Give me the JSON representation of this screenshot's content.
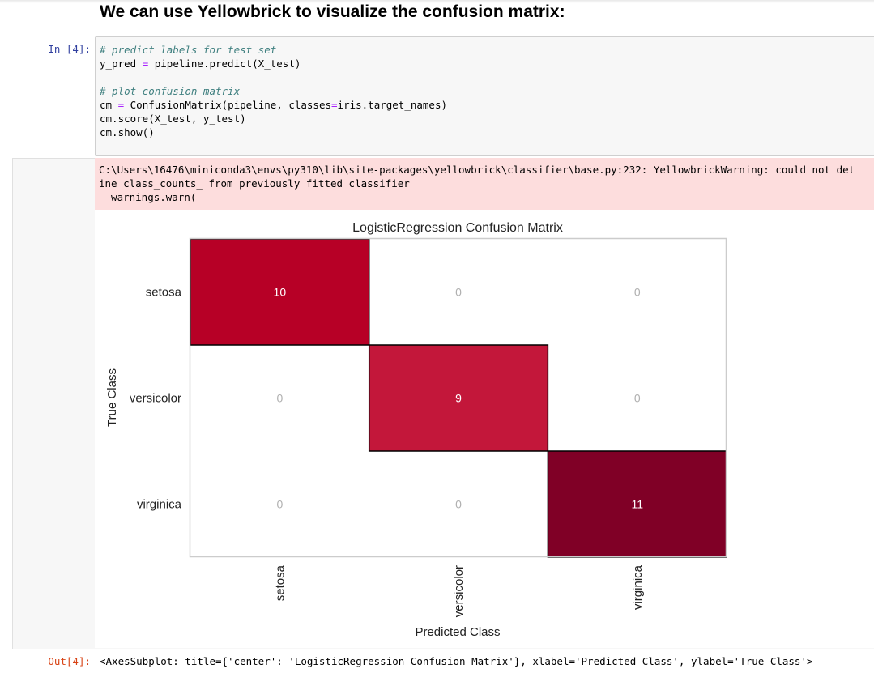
{
  "heading": "We can use Yellowbrick to visualize the confusion matrix:",
  "cell": {
    "in_prompt": "In [4]:",
    "out_prompt": "Out[4]:",
    "code": {
      "comment1": "# predict labels for test set",
      "line2_var": "y_pred",
      "line2_op": "=",
      "line2_rest": "pipeline.predict(X_test)",
      "comment2": "# plot confusion matrix",
      "line5_var": "cm",
      "line5_op1": "=",
      "line5_mid": "ConfusionMatrix(pipeline, classes",
      "line5_op2": "=",
      "line5_rest": "iris.target_names)",
      "line6": "cm.score(X_test, y_test)",
      "line7": "cm.show()"
    },
    "stderr": {
      "line1": "C:\\Users\\16476\\miniconda3\\envs\\py310\\lib\\site-packages\\yellowbrick\\classifier\\base.py:232: YellowbrickWarning: could not det",
      "line2": "ine class_counts_ from previously fitted classifier",
      "line3": "  warnings.warn("
    },
    "output_text": "<AxesSubplot: title={'center': 'LogisticRegression Confusion Matrix'}, xlabel='Predicted Class', ylabel='True Class'>"
  },
  "chart_data": {
    "type": "heatmap",
    "title": "LogisticRegression Confusion Matrix",
    "xlabel": "Predicted Class",
    "ylabel": "True Class",
    "classes": [
      "setosa",
      "versicolor",
      "virginica"
    ],
    "matrix": [
      [
        10,
        0,
        0
      ],
      [
        0,
        9,
        0
      ],
      [
        0,
        0,
        11
      ]
    ],
    "colormap": {
      "low": "#ffffff",
      "mid": "#bd0026",
      "high": "#800026"
    },
    "zero_text_color": "#b0b0b0",
    "nonzero_text_color": "#ffffff",
    "grid": false
  }
}
